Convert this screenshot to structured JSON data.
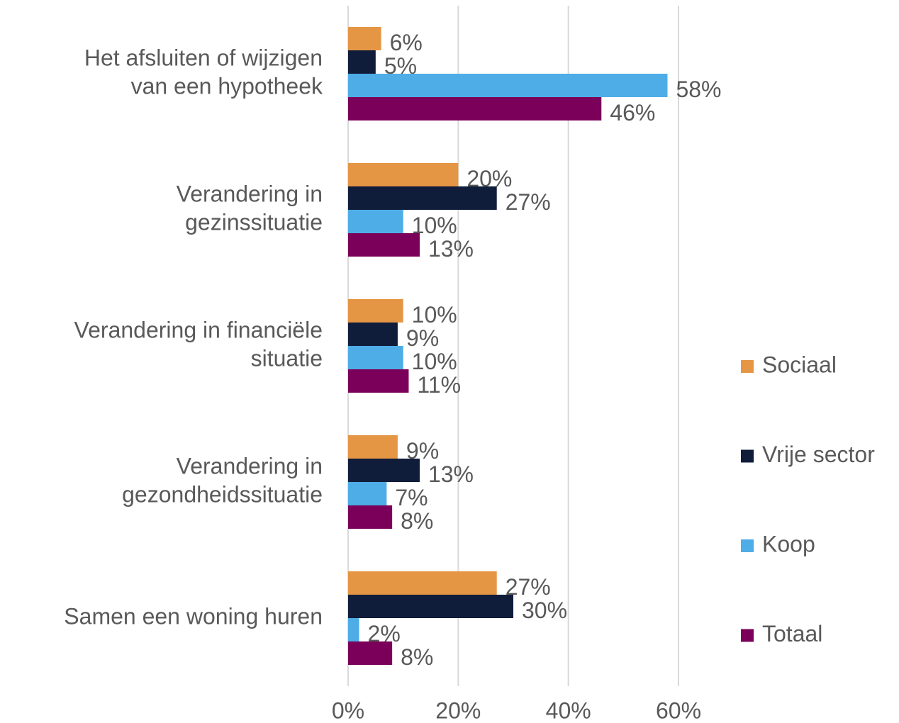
{
  "chart_data": {
    "type": "hbar",
    "categories": [
      [
        "Het afsluiten of wijzigen",
        "van een hypotheek"
      ],
      [
        "Verandering in",
        "gezinssituatie"
      ],
      [
        "Verandering in financiële",
        "situatie"
      ],
      [
        "Verandering in",
        "gezondheidssituatie"
      ],
      [
        "Samen een woning huren"
      ]
    ],
    "series": [
      {
        "name": "Sociaal",
        "color": "#E59645",
        "values": [
          6,
          20,
          10,
          9,
          27
        ],
        "value_labels": [
          "6%",
          "20%",
          "10%",
          "9%",
          "27%"
        ]
      },
      {
        "name": "Vrije sector",
        "color": "#0F1C3A",
        "values": [
          5,
          27,
          9,
          13,
          30
        ],
        "value_labels": [
          "5%",
          "27%",
          "9%",
          "13%",
          "30%"
        ]
      },
      {
        "name": "Koop",
        "color": "#4EADE6",
        "values": [
          58,
          10,
          10,
          7,
          2
        ],
        "value_labels": [
          "58%",
          "10%",
          "10%",
          "7%",
          "2%"
        ]
      },
      {
        "name": "Totaal",
        "color": "#7A0059",
        "values": [
          46,
          13,
          11,
          8,
          8
        ],
        "value_labels": [
          "46%",
          "13%",
          "11%",
          "8%",
          "8%"
        ]
      }
    ],
    "xlim": [
      0,
      60
    ],
    "xticks": [
      {
        "value": 0,
        "label": "0%"
      },
      {
        "value": 20,
        "label": "20%"
      },
      {
        "value": 40,
        "label": "40%"
      },
      {
        "value": 60,
        "label": "60%"
      }
    ],
    "grid": true,
    "legend": "right"
  }
}
